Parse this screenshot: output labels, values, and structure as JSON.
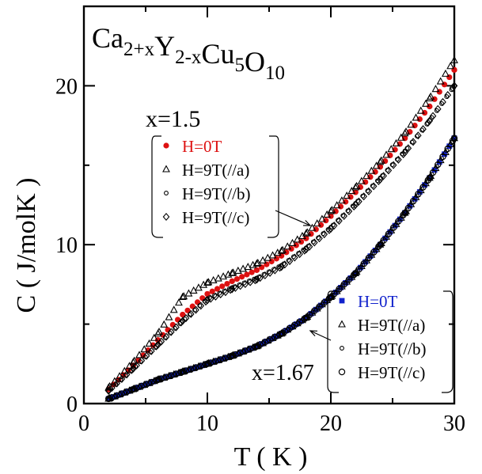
{
  "chart_data": {
    "type": "scatter",
    "title": "Ca2+xY2-xCu5O10",
    "formula": {
      "parts": [
        {
          "t": "Ca",
          "sub": "2+x"
        },
        {
          "t": "Y",
          "sub": "2-x"
        },
        {
          "t": "Cu",
          "sub": "5"
        },
        {
          "t": "O",
          "sub": "10"
        }
      ]
    },
    "xlabel": "T ( K )",
    "ylabel": "C ( J/molK )",
    "xlim": [
      0,
      30
    ],
    "ylim": [
      0,
      25
    ],
    "xticks": [
      0,
      10,
      20,
      30
    ],
    "yticks": [
      0,
      10,
      20
    ],
    "grid": false,
    "groups": [
      {
        "label": "x=1.5",
        "legend_placement": "upper-center",
        "series": [
          {
            "name": "H=0T",
            "marker": "filled-circle",
            "color": "#dd1111",
            "x": [
              2,
              4,
              6,
              8,
              10,
              12,
              14,
              16,
              18,
              20,
              22,
              24,
              26,
              28,
              30
            ],
            "y": [
              0.9,
              2.4,
              4.0,
              5.6,
              6.9,
              7.7,
              8.4,
              9.3,
              10.4,
              11.8,
              13.3,
              14.9,
              16.7,
              18.7,
              21.0
            ]
          },
          {
            "name": "H=9T(//a)",
            "marker": "open-triangle",
            "color": "#000000",
            "x": [
              2,
              4,
              6,
              8,
              10,
              12,
              14,
              16,
              18,
              20,
              22,
              24,
              26,
              28,
              30
            ],
            "y": [
              1.0,
              2.6,
              4.4,
              6.7,
              7.6,
              8.2,
              8.8,
              9.6,
              10.7,
              12.1,
              13.6,
              15.2,
              17.0,
              19.2,
              21.6
            ]
          },
          {
            "name": "H=9T(//b)",
            "marker": "small-open-circle",
            "color": "#000000",
            "x": [
              2,
              4,
              6,
              8,
              10,
              12,
              14,
              16,
              18,
              20,
              22,
              24,
              26,
              28,
              30
            ],
            "y": [
              0.8,
              2.2,
              3.7,
              5.2,
              6.6,
              7.3,
              7.9,
              8.7,
              9.8,
              11.1,
              12.6,
              14.2,
              15.9,
              17.8,
              20.0
            ]
          },
          {
            "name": "H=9T(//c)",
            "marker": "open-diamond",
            "color": "#000000",
            "x": [
              2,
              4,
              6,
              8,
              10,
              12,
              14,
              16,
              18,
              20,
              22,
              24,
              26,
              28,
              30
            ],
            "y": [
              0.8,
              2.2,
              3.7,
              5.2,
              6.5,
              7.2,
              7.8,
              8.6,
              9.7,
              11.0,
              12.5,
              14.1,
              15.8,
              17.8,
              20.0
            ]
          }
        ]
      },
      {
        "label": "x=1.67",
        "legend_placement": "lower-right",
        "series": [
          {
            "name": "H=0T",
            "marker": "filled-square",
            "color": "#1122cc",
            "x": [
              2,
              4,
              6,
              8,
              10,
              12,
              14,
              16,
              18,
              20,
              22,
              24,
              26,
              28,
              30
            ],
            "y": [
              0.3,
              0.9,
              1.5,
              2.0,
              2.5,
              3.0,
              3.6,
              4.4,
              5.4,
              6.7,
              8.2,
              10.0,
              12.0,
              14.2,
              16.7
            ]
          },
          {
            "name": "H=9T(//a)",
            "marker": "open-triangle",
            "color": "#000000",
            "x": [
              2,
              4,
              6,
              8,
              10,
              12,
              14,
              16,
              18,
              20,
              22,
              24,
              26,
              28,
              30
            ],
            "y": [
              0.3,
              0.9,
              1.5,
              2.0,
              2.5,
              3.0,
              3.6,
              4.4,
              5.4,
              6.7,
              8.2,
              10.0,
              12.0,
              14.2,
              16.7
            ]
          },
          {
            "name": "H=9T(//b)",
            "marker": "small-open-circle",
            "color": "#000000",
            "x": [
              2,
              4,
              6,
              8,
              10,
              12,
              14,
              16,
              18,
              20,
              22,
              24,
              26,
              28,
              30
            ],
            "y": [
              0.3,
              0.9,
              1.5,
              2.0,
              2.5,
              3.0,
              3.6,
              4.4,
              5.4,
              6.7,
              8.2,
              10.0,
              12.0,
              14.2,
              16.7
            ]
          },
          {
            "name": "H=9T(//c)",
            "marker": "open-circle",
            "color": "#000000",
            "x": [
              2,
              4,
              6,
              8,
              10,
              12,
              14,
              16,
              18,
              20,
              22,
              24,
              26,
              28,
              30
            ],
            "y": [
              0.3,
              0.9,
              1.5,
              2.0,
              2.5,
              3.0,
              3.6,
              4.4,
              5.4,
              6.7,
              8.2,
              10.0,
              12.0,
              14.2,
              16.7
            ]
          }
        ]
      }
    ]
  }
}
